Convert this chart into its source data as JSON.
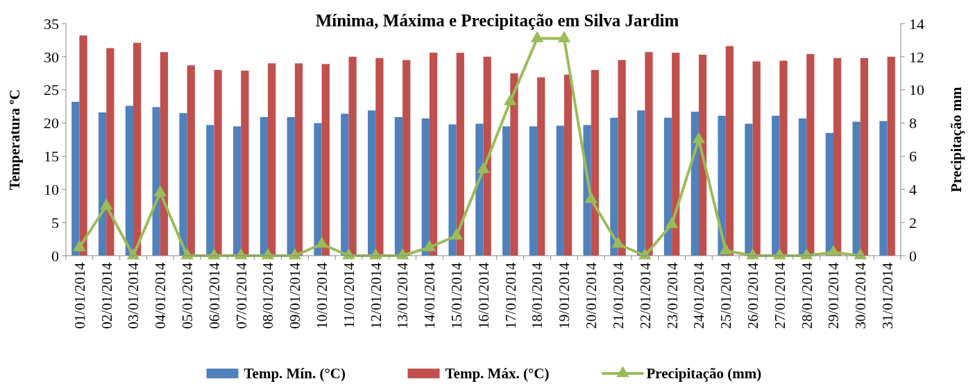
{
  "chart_data": {
    "type": "bar",
    "title": "Mínima, Máxima e Precipitação em Silva Jardim",
    "ylabel": "Temperatura ºC",
    "y2label": "Precipitação mm",
    "categories": [
      "01/01/2014",
      "02/01/2014",
      "03/01/2014",
      "04/01/2014",
      "05/01/2014",
      "06/01/2014",
      "07/01/2014",
      "08/01/2014",
      "09/01/2014",
      "10/01/2014",
      "11/01/2014",
      "12/01/2014",
      "13/01/2014",
      "14/01/2014",
      "15/01/2014",
      "16/01/2014",
      "17/01/2014",
      "18/01/2014",
      "19/01/2014",
      "20/01/2014",
      "21/01/2014",
      "22/01/2014",
      "23/01/2014",
      "24/01/2014",
      "25/01/2014",
      "26/01/2014",
      "27/01/2014",
      "28/01/2014",
      "29/01/2014",
      "30/01/2014",
      "31/01/2014"
    ],
    "series": [
      {
        "name": "Temp. Mín. (°C)",
        "color": "#4f81bd",
        "values": [
          23.2,
          21.6,
          22.6,
          22.4,
          21.5,
          19.7,
          19.5,
          20.9,
          20.9,
          20.0,
          21.4,
          21.9,
          20.9,
          20.7,
          19.8,
          19.9,
          19.5,
          19.5,
          19.6,
          19.7,
          20.8,
          21.9,
          20.8,
          21.7,
          21.1,
          19.9,
          21.1,
          20.7,
          18.5,
          20.2,
          20.3
        ]
      },
      {
        "name": "Temp. Máx. (°C)",
        "color": "#c0504d",
        "values": [
          33.2,
          31.3,
          32.1,
          30.7,
          28.7,
          28.0,
          27.9,
          29.0,
          29.0,
          28.9,
          30.0,
          29.8,
          29.5,
          30.6,
          30.6,
          30.0,
          27.5,
          26.9,
          27.3,
          28.0,
          29.5,
          30.7,
          30.6,
          30.3,
          31.6,
          29.3,
          29.4,
          30.4,
          29.8,
          29.8,
          30.0
        ]
      },
      {
        "name": "Precipitação (mm)",
        "type": "line",
        "axis": "y2",
        "color": "#9bbb59",
        "marker": "triangle",
        "values": [
          0.5,
          3.0,
          0,
          3.8,
          0,
          0,
          0,
          0,
          0,
          0.7,
          0,
          0,
          0,
          0.5,
          1.2,
          5.2,
          9.3,
          13.1,
          13.1,
          3.4,
          0.7,
          0,
          1.9,
          7.0,
          0.3,
          0,
          0,
          0,
          0.2,
          0,
          null
        ]
      }
    ],
    "ylim": [
      0,
      35
    ],
    "yticks": [
      0,
      5,
      10,
      15,
      20,
      25,
      30,
      35
    ],
    "y2lim": [
      0,
      14
    ],
    "y2ticks": [
      0,
      2,
      4,
      6,
      8,
      10,
      12,
      14
    ],
    "legend": "bottom"
  }
}
